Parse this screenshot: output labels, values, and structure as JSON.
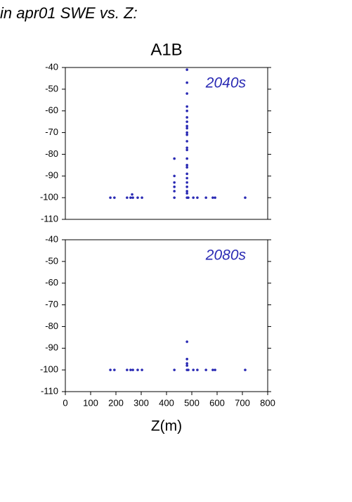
{
  "header": "in apr01 SWE vs. Z:",
  "chart_data": [
    {
      "type": "scatter",
      "title": "A1B",
      "annotation": "2040s",
      "xlim": [
        0,
        800
      ],
      "ylim": [
        -110,
        -40
      ],
      "yticks": [
        -40,
        -50,
        -60,
        -70,
        -80,
        -90,
        -100,
        -110
      ],
      "series": [
        {
          "color": "#2a2ab4",
          "x": [
            178,
            194,
            244,
            258,
            267,
            286,
            303,
            431,
            481,
            486,
            506,
            522,
            556,
            583,
            592,
            711,
            264,
            431,
            431,
            431,
            431,
            431,
            481,
            481,
            481,
            481,
            481,
            481,
            481,
            481,
            481,
            481,
            481,
            481,
            481,
            481,
            481,
            481,
            481,
            481,
            481,
            481,
            481,
            481,
            481
          ],
          "y": [
            -100,
            -100,
            -100,
            -100,
            -100,
            -100,
            -100,
            -100,
            -100,
            -100,
            -100,
            -100,
            -100,
            -100,
            -100,
            -100,
            -98.5,
            -82,
            -90,
            -93,
            -95,
            -97,
            -41,
            -47,
            -52,
            -58,
            -60,
            -63,
            -65,
            -67,
            -68,
            -70,
            -71,
            -74,
            -77,
            -78,
            -82,
            -85,
            -86,
            -89,
            -91,
            -93,
            -95,
            -97,
            -98
          ]
        }
      ]
    },
    {
      "type": "scatter",
      "annotation": "2080s",
      "xlabel": "Z(m)",
      "xlim": [
        0,
        800
      ],
      "ylim": [
        -110,
        -40
      ],
      "xticks": [
        0,
        100,
        200,
        300,
        400,
        500,
        600,
        700,
        800
      ],
      "yticks": [
        -40,
        -50,
        -60,
        -70,
        -80,
        -90,
        -100,
        -110
      ],
      "series": [
        {
          "color": "#2a2ab4",
          "x": [
            178,
            194,
            244,
            258,
            267,
            286,
            303,
            431,
            481,
            486,
            506,
            522,
            556,
            583,
            592,
            711,
            481,
            481,
            481,
            481
          ],
          "y": [
            -100,
            -100,
            -100,
            -100,
            -100,
            -100,
            -100,
            -100,
            -100,
            -100,
            -100,
            -100,
            -100,
            -100,
            -100,
            -100,
            -87,
            -95,
            -97,
            -98
          ]
        }
      ]
    }
  ]
}
